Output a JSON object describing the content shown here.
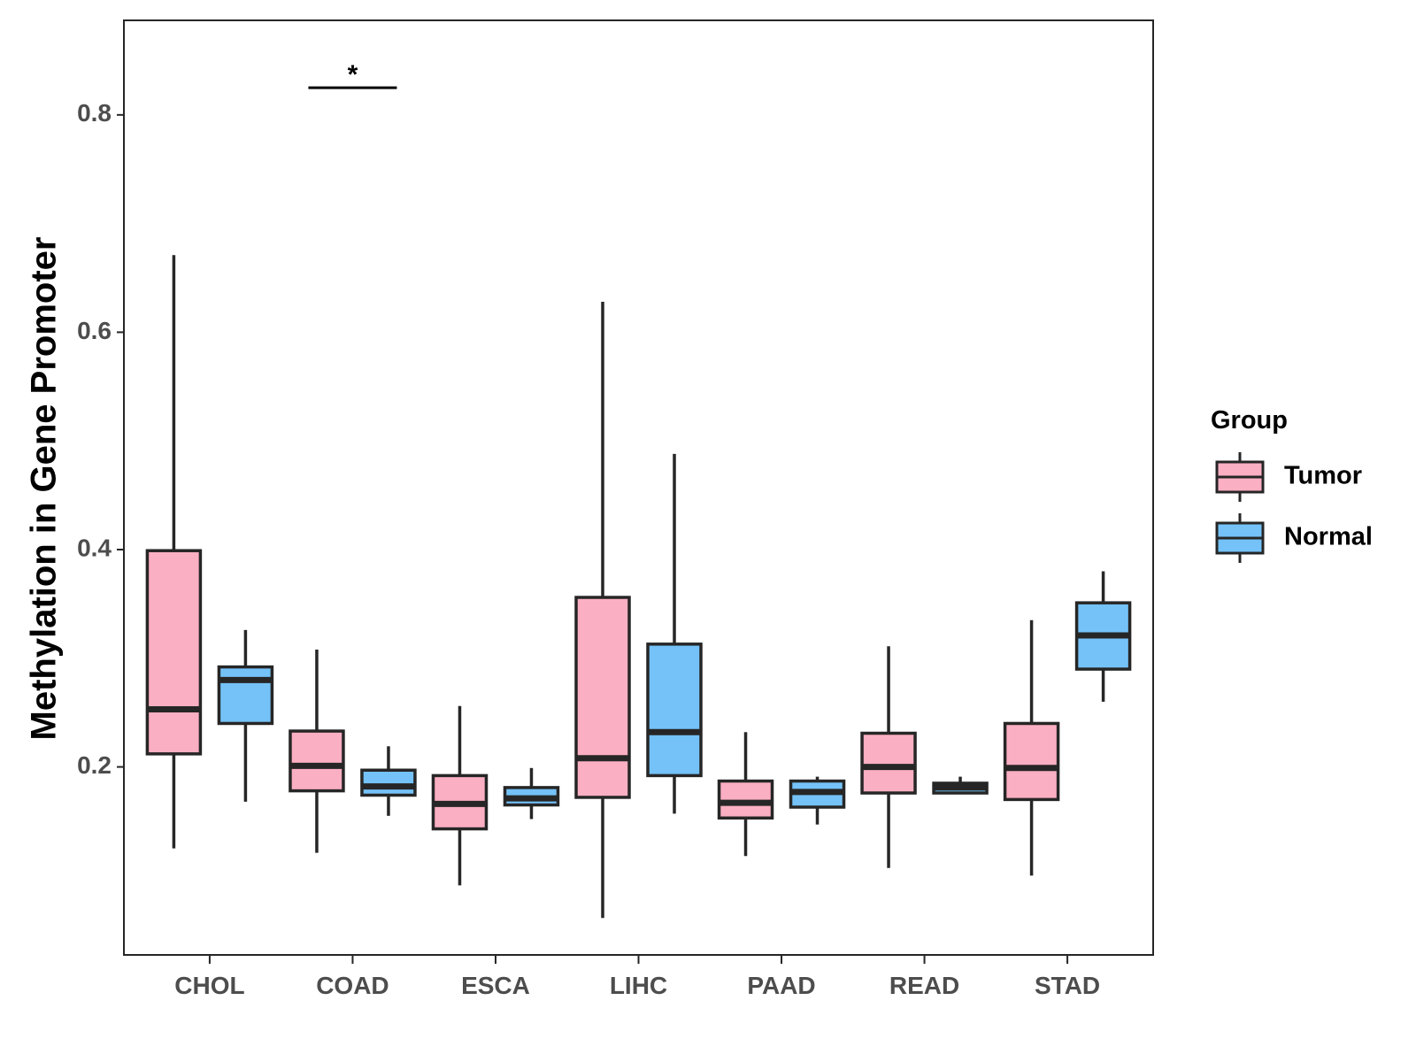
{
  "chart_data": {
    "type": "boxplot",
    "title": "",
    "xlabel": "",
    "ylabel": "Methylation in Gene Promoter",
    "ylim": [
      0.027,
      0.887
    ],
    "yticks": [
      0.2,
      0.4,
      0.6,
      0.8
    ],
    "ytick_labels": [
      "0.2",
      "0.4",
      "0.6",
      "0.8"
    ],
    "grid": false,
    "categories": [
      "CHOL",
      "COAD",
      "ESCA",
      "LIHC",
      "PAAD",
      "READ",
      "STAD"
    ],
    "legend": {
      "title": "Group",
      "placement": "right",
      "entries": [
        "Tumor",
        "Normal"
      ]
    },
    "colors": {
      "Tumor": "#FBAFC2",
      "Normal": "#74C2F8",
      "stroke": "#262626"
    },
    "series": [
      {
        "name": "Tumor",
        "boxes": [
          {
            "whisker_low": 0.125,
            "q1": 0.212,
            "median": 0.253,
            "q3": 0.399,
            "whisker_high": 0.671
          },
          {
            "whisker_low": 0.121,
            "q1": 0.178,
            "median": 0.201,
            "q3": 0.233,
            "whisker_high": 0.308
          },
          {
            "whisker_low": 0.091,
            "q1": 0.143,
            "median": 0.166,
            "q3": 0.192,
            "whisker_high": 0.256
          },
          {
            "whisker_low": 0.061,
            "q1": 0.172,
            "median": 0.208,
            "q3": 0.356,
            "whisker_high": 0.628
          },
          {
            "whisker_low": 0.118,
            "q1": 0.153,
            "median": 0.167,
            "q3": 0.187,
            "whisker_high": 0.232
          },
          {
            "whisker_low": 0.107,
            "q1": 0.176,
            "median": 0.2,
            "q3": 0.231,
            "whisker_high": 0.311
          },
          {
            "whisker_low": 0.1,
            "q1": 0.17,
            "median": 0.199,
            "q3": 0.24,
            "whisker_high": 0.335
          }
        ]
      },
      {
        "name": "Normal",
        "boxes": [
          {
            "whisker_low": 0.168,
            "q1": 0.24,
            "median": 0.28,
            "q3": 0.292,
            "whisker_high": 0.326
          },
          {
            "whisker_low": 0.155,
            "q1": 0.174,
            "median": 0.182,
            "q3": 0.197,
            "whisker_high": 0.219
          },
          {
            "whisker_low": 0.152,
            "q1": 0.165,
            "median": 0.171,
            "q3": 0.181,
            "whisker_high": 0.199
          },
          {
            "whisker_low": 0.157,
            "q1": 0.192,
            "median": 0.232,
            "q3": 0.313,
            "whisker_high": 0.488
          },
          {
            "whisker_low": 0.147,
            "q1": 0.163,
            "median": 0.177,
            "q3": 0.187,
            "whisker_high": 0.191
          },
          {
            "whisker_low": 0.176,
            "q1": 0.176,
            "median": 0.181,
            "q3": 0.185,
            "whisker_high": 0.191
          },
          {
            "whisker_low": 0.26,
            "q1": 0.29,
            "median": 0.321,
            "q3": 0.351,
            "whisker_high": 0.38
          }
        ]
      }
    ],
    "annotations": [
      {
        "category": "COAD",
        "label": "*",
        "y": 0.825
      }
    ]
  }
}
